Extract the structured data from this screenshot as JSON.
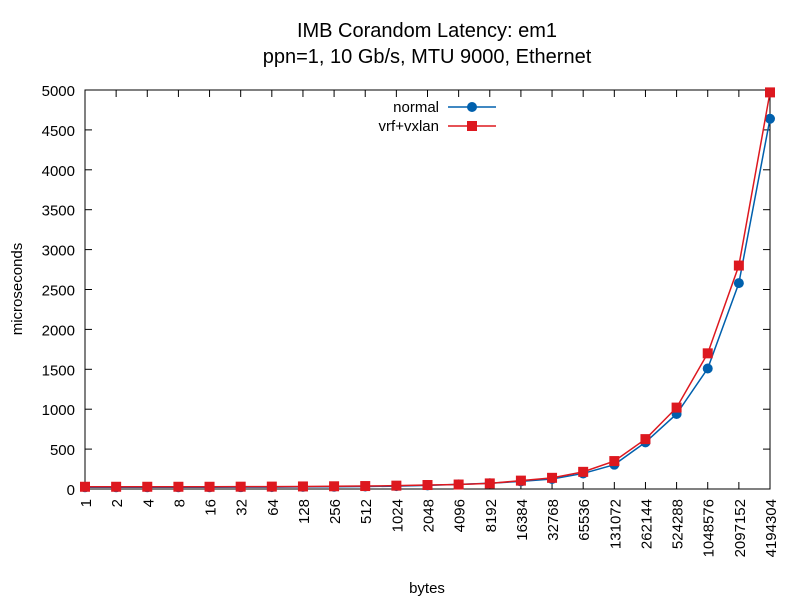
{
  "chart_data": {
    "type": "line",
    "title": "IMB Corandom Latency: em1",
    "subtitle": "ppn=1, 10 Gb/s, MTU 9000, Ethernet",
    "xlabel": "bytes",
    "ylabel": "microseconds",
    "ylim": [
      0,
      5000
    ],
    "yticks": [
      0,
      500,
      1000,
      1500,
      2000,
      2500,
      3000,
      3500,
      4000,
      4500,
      5000
    ],
    "categories": [
      "1",
      "2",
      "4",
      "8",
      "16",
      "32",
      "64",
      "128",
      "256",
      "512",
      "1024",
      "2048",
      "4096",
      "8192",
      "16384",
      "32768",
      "65536",
      "131072",
      "262144",
      "524288",
      "1048576",
      "2097152",
      "4194304"
    ],
    "legend_position": "top-center",
    "grid": false,
    "series": [
      {
        "name": "normal",
        "color": "#0060ad",
        "marker": "circle",
        "values": [
          22,
          22,
          22,
          22,
          22,
          23,
          24,
          26,
          28,
          31,
          36,
          45,
          58,
          72,
          95,
          125,
          195,
          305,
          585,
          940,
          1510,
          2580,
          4640
        ]
      },
      {
        "name": "vrf+vxlan",
        "color": "#dd181f",
        "marker": "square",
        "values": [
          28,
          28,
          28,
          28,
          28,
          29,
          30,
          32,
          34,
          37,
          42,
          50,
          56,
          70,
          105,
          140,
          215,
          350,
          625,
          1020,
          1700,
          2800,
          4970
        ]
      }
    ]
  }
}
